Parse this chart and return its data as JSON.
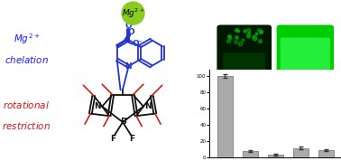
{
  "bg_color": "#ffffff",
  "left_color_blue": "#1a1aff",
  "left_color_red": "#dd1111",
  "mg_circle_color": "#88cc22",
  "bar_values": [
    100,
    8,
    4,
    12,
    9
  ],
  "bar_errors": [
    2.5,
    1.2,
    0.8,
    1.3,
    1.2
  ],
  "bar_color": "#aaaaaa",
  "bar_edge_color": "#888888",
  "ylim": [
    0,
    108
  ],
  "blue": "#2233cc",
  "red": "#cc2211",
  "black": "#111111",
  "photo_bg": "#050a05",
  "vial_left_color": "#004400",
  "vial_left_glow": "#007700",
  "vial_right_color": "#00bb00",
  "vial_right_bright": "#33ff44",
  "photo_border": "#333333"
}
